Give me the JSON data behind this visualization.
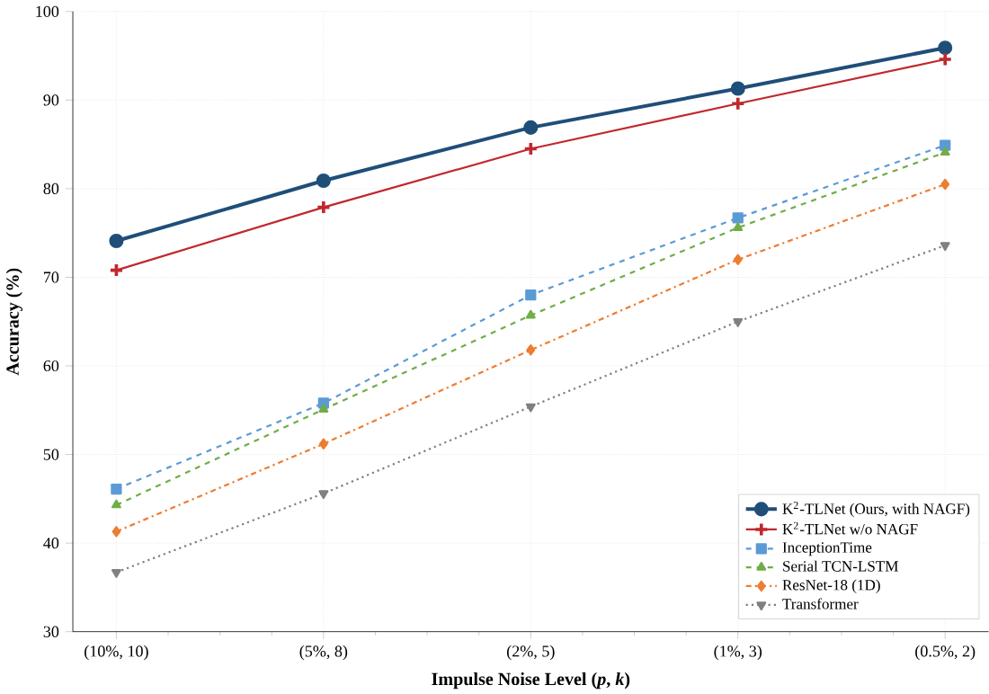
{
  "chart_data": {
    "type": "line",
    "xlabel": "**Impulse Noise Level (*p*, *k*)**",
    "ylabel": "Accuracy (%)",
    "categories": [
      "(10%, 10)",
      "(5%, 8)",
      "(2%, 5)",
      "(1%, 3)",
      "(0.5%, 2)"
    ],
    "ylim": [
      30,
      100
    ],
    "yticks": [
      30,
      40,
      50,
      60,
      70,
      80,
      90,
      100
    ],
    "grid": true,
    "legend": "bottom right",
    "series": [
      {
        "name": "K$^{2}$-TLNet (Ours, with NAGF)",
        "color": "#1f4e79",
        "marker": "circle",
        "line_style": "solid",
        "values": [
          74.1,
          80.9,
          86.9,
          91.3,
          95.9
        ]
      },
      {
        "name": "K$^{2}$-TLNet w/o NAGF",
        "color": "#c0282d",
        "marker": "plus",
        "line_style": "solid",
        "values": [
          70.8,
          77.9,
          84.5,
          89.6,
          94.6
        ]
      },
      {
        "name": "InceptionTime",
        "color": "#5b9bd5",
        "marker": "square",
        "line_style": "dashed",
        "values": [
          46.1,
          55.8,
          68.0,
          76.7,
          84.9
        ]
      },
      {
        "name": "Serial TCN-LSTM",
        "color": "#70ad47",
        "marker": "triangle",
        "line_style": "dashed",
        "values": [
          44.3,
          55.1,
          65.7,
          75.6,
          84.1
        ]
      },
      {
        "name": "ResNet-18 (1D)",
        "color": "#ed7d31",
        "marker": "diamond",
        "line_style": "dashdot",
        "values": [
          41.3,
          51.2,
          61.8,
          72.0,
          80.5
        ]
      },
      {
        "name": "Transformer",
        "color": "#808080",
        "marker": "triangle down",
        "line_style": "dotted",
        "values": [
          36.7,
          45.6,
          55.4,
          65.0,
          73.6
        ]
      }
    ]
  }
}
